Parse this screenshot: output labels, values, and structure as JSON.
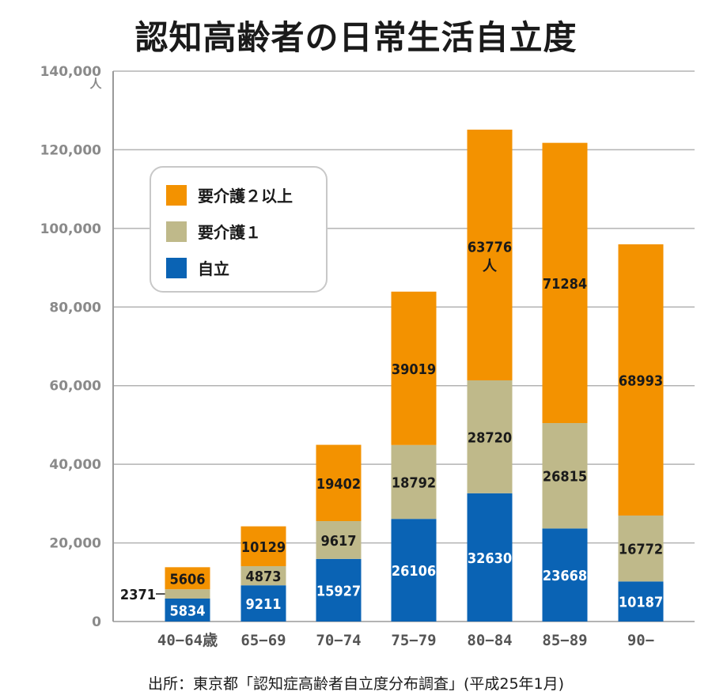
{
  "title": "認知高齢者の日常生活自立度",
  "source": "出所：東京都「認知症高齢者自立度分布調査」(平成25年1月)",
  "chart_data": {
    "type": "bar",
    "stacked": true,
    "title": "認知高齢者の日常生活自立度",
    "categories": [
      "40−64歳",
      "65−69",
      "70−74",
      "75−79",
      "80−84",
      "85−89",
      "90−"
    ],
    "series": [
      {
        "name": "自立",
        "color": "#0a63b4",
        "values": [
          5834,
          9211,
          15927,
          26106,
          32630,
          23668,
          10187
        ]
      },
      {
        "name": "要介護１",
        "color": "#bfb98a",
        "values": [
          2371,
          4873,
          9617,
          18792,
          28720,
          26815,
          16772
        ]
      },
      {
        "name": "要介護２以上",
        "color": "#f39200",
        "values": [
          5606,
          10129,
          19402,
          39019,
          63776,
          71284,
          68993
        ]
      }
    ],
    "ylim": [
      0,
      140000
    ],
    "yticks": [
      "0",
      "20,000",
      "40,000",
      "60,000",
      "80,000",
      "100,000",
      "120,000",
      "140,000"
    ],
    "yunit": "人",
    "annotations": {
      "callout_label": "2371",
      "unit_label": "人"
    },
    "grid": true,
    "legend_position": "upper-left",
    "legend_order": [
      "要介護２以上",
      "要介護１",
      "自立"
    ]
  }
}
